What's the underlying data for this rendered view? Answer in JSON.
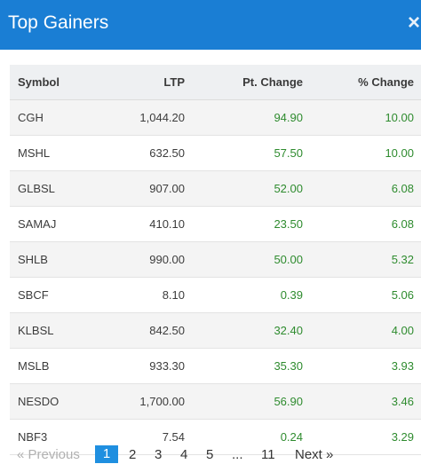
{
  "header": {
    "title": "Top Gainers",
    "close_label": "×"
  },
  "table": {
    "columns": [
      "Symbol",
      "LTP",
      "Pt. Change",
      "% Change"
    ],
    "rows": [
      [
        "CGH",
        "1,044.20",
        "94.90",
        "10.00"
      ],
      [
        "MSHL",
        "632.50",
        "57.50",
        "10.00"
      ],
      [
        "GLBSL",
        "907.00",
        "52.00",
        "6.08"
      ],
      [
        "SAMAJ",
        "410.10",
        "23.50",
        "6.08"
      ],
      [
        "SHLB",
        "990.00",
        "50.00",
        "5.32"
      ],
      [
        "SBCF",
        "8.10",
        "0.39",
        "5.06"
      ],
      [
        "KLBSL",
        "842.50",
        "32.40",
        "4.00"
      ],
      [
        "MSLB",
        "933.30",
        "35.30",
        "3.93"
      ],
      [
        "NESDO",
        "1,700.00",
        "56.90",
        "3.46"
      ],
      [
        "NBF3",
        "7.54",
        "0.24",
        "3.29"
      ]
    ]
  },
  "pagination": {
    "prev_label": "« Previous",
    "pages": [
      "1",
      "2",
      "3",
      "4",
      "5",
      "...",
      "11"
    ],
    "active_page": "1",
    "next_label": "Next »"
  },
  "colors": {
    "header_bg": "#1a7ed4",
    "gain": "#2e8b2e",
    "active_page": "#1f8fe0"
  }
}
